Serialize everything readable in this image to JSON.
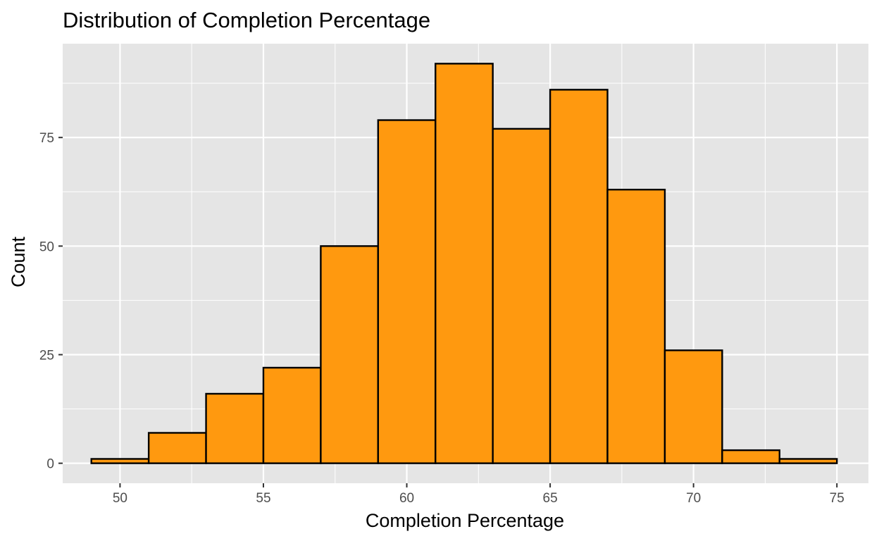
{
  "chart_data": {
    "type": "bar",
    "title": "Distribution of Completion Percentage",
    "xlabel": "Completion Percentage",
    "ylabel": "Count",
    "bin_edges": [
      49,
      51,
      53,
      55,
      57,
      59,
      61,
      63,
      65,
      67,
      69,
      71,
      73,
      75
    ],
    "values": [
      1,
      7,
      16,
      22,
      50,
      79,
      92,
      77,
      86,
      63,
      26,
      3,
      1
    ],
    "xlim": [
      48,
      76.1
    ],
    "ylim": [
      -4.6,
      96.6
    ],
    "x_ticks": [
      50,
      55,
      60,
      65,
      70,
      75
    ],
    "x_tick_labels": [
      "50",
      "55",
      "60",
      "65",
      "70",
      "75"
    ],
    "y_ticks": [
      0,
      25,
      50,
      75
    ],
    "y_tick_labels": [
      "0",
      "25",
      "50",
      "75"
    ],
    "grid": true,
    "legend": "none",
    "colors": {
      "bar_fill": "#FF990F",
      "bar_outline": "#000000",
      "panel_background": "#E5E5E5",
      "grid_major": "#FFFFFF"
    }
  }
}
